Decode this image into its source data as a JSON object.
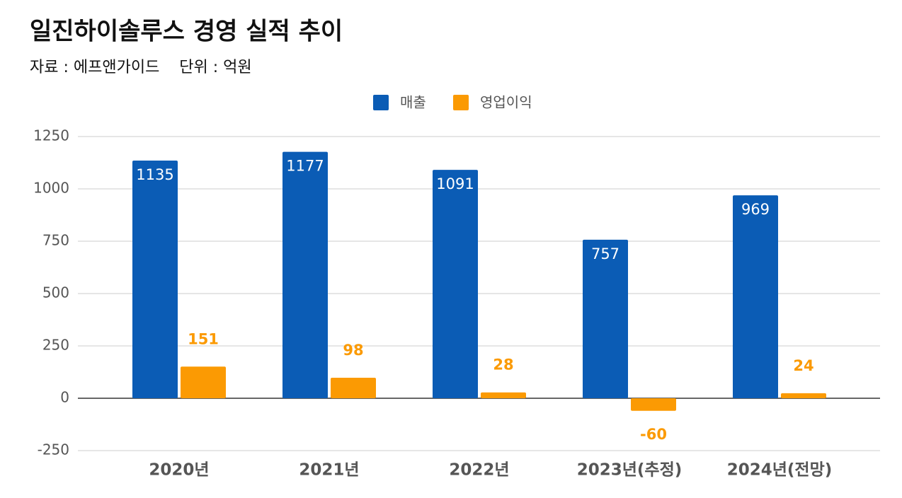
{
  "chart_data": {
    "type": "bar",
    "title": "일진하이솔루스 경영 실적 추이",
    "subtitle": "자료 : 에프앤가이드    단위 : 억원",
    "categories": [
      "2020년",
      "2021년",
      "2022년",
      "2023년(추정)",
      "2024년(전망)"
    ],
    "series": [
      {
        "name": "매출",
        "color": "#0b5cb5",
        "values": [
          1135,
          1177,
          1091,
          757,
          969
        ]
      },
      {
        "name": "영업이익",
        "color": "#fb9a03",
        "values": [
          151,
          98,
          28,
          -60,
          24
        ]
      }
    ],
    "ylim": [
      -250,
      1250
    ],
    "yticks": [
      -250,
      0,
      250,
      500,
      750,
      1000,
      1250
    ],
    "grid": true,
    "legend": "top"
  }
}
